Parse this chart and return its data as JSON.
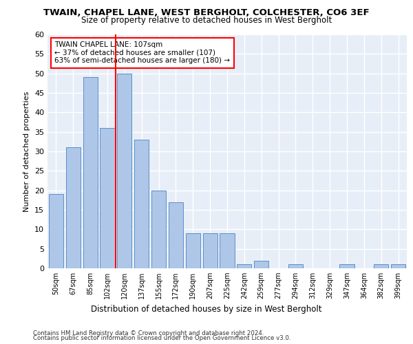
{
  "title_line1": "TWAIN, CHAPEL LANE, WEST BERGHOLT, COLCHESTER, CO6 3EF",
  "title_line2": "Size of property relative to detached houses in West Bergholt",
  "xlabel": "Distribution of detached houses by size in West Bergholt",
  "ylabel": "Number of detached properties",
  "categories": [
    "50sqm",
    "67sqm",
    "85sqm",
    "102sqm",
    "120sqm",
    "137sqm",
    "155sqm",
    "172sqm",
    "190sqm",
    "207sqm",
    "225sqm",
    "242sqm",
    "259sqm",
    "277sqm",
    "294sqm",
    "312sqm",
    "329sqm",
    "347sqm",
    "364sqm",
    "382sqm",
    "399sqm"
  ],
  "values": [
    19,
    31,
    49,
    36,
    50,
    33,
    20,
    17,
    9,
    9,
    9,
    1,
    2,
    0,
    1,
    0,
    0,
    1,
    0,
    1,
    1
  ],
  "bar_color": "#aec6e8",
  "bar_edge_color": "#5b8fc9",
  "red_line_index": 3,
  "annotation_title": "TWAIN CHAPEL LANE: 107sqm",
  "annotation_line1": "← 37% of detached houses are smaller (107)",
  "annotation_line2": "63% of semi-detached houses are larger (180) →",
  "ylim": [
    0,
    60
  ],
  "yticks": [
    0,
    5,
    10,
    15,
    20,
    25,
    30,
    35,
    40,
    45,
    50,
    55,
    60
  ],
  "background_color": "#e8eef8",
  "grid_color": "#ffffff",
  "footer_line1": "Contains HM Land Registry data © Crown copyright and database right 2024.",
  "footer_line2": "Contains public sector information licensed under the Open Government Licence v3.0."
}
